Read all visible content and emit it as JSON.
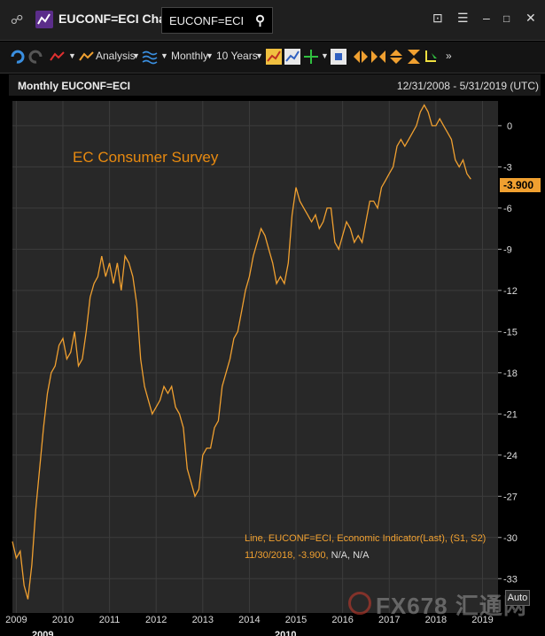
{
  "window": {
    "title": "EUCONF=ECI Chart",
    "search_value": "EUCONF=ECI"
  },
  "toolbar": {
    "analysis_label": "Analysis",
    "interval_label": "Monthly",
    "range_label": "10 Years"
  },
  "chart_header": {
    "left": "Monthly EUCONF=ECI",
    "right": "12/31/2008 - 5/31/2019 (UTC)"
  },
  "auto_label": "Auto",
  "watermark": "FX678 汇通网",
  "chart_data": {
    "type": "line",
    "title": "EC Consumer Survey",
    "line_color": "#f0a030",
    "x_start": "2008-12",
    "series": [
      {
        "values": [
          -30.3,
          -31.5,
          -31.0,
          -33.5,
          -34.5,
          -32.0,
          -28.0,
          -25.0,
          -22.0,
          -19.5,
          -18.0,
          -17.5,
          -16.0,
          -15.5,
          -17.0,
          -16.5,
          -15.0,
          -17.5,
          -17.0,
          -15.0,
          -12.5,
          -11.5,
          -11.0,
          -9.5,
          -11.0,
          -10.0,
          -11.5,
          -10.0,
          -12.0,
          -9.5,
          -10.0,
          -11.0,
          -13.0,
          -17.0,
          -19.0,
          -20.0,
          -21.0,
          -20.5,
          -20.0,
          -19.0,
          -19.5,
          -19.0,
          -20.5,
          -21.0,
          -22.0,
          -25.0,
          -26.0,
          -27.0,
          -26.5,
          -24.0,
          -23.5,
          -23.5,
          -22.0,
          -21.5,
          -19.0,
          -18.0,
          -17.0,
          -15.5,
          -15.0,
          -13.5,
          -12.0,
          -11.0,
          -9.5,
          -8.5,
          -7.5,
          -8.0,
          -9.0,
          -10.0,
          -11.5,
          -11.0,
          -11.5,
          -10.0,
          -6.5,
          -4.5,
          -5.5,
          -6.0,
          -6.5,
          -7.0,
          -6.5,
          -7.5,
          -7.0,
          -6.0,
          -6.0,
          -8.5,
          -9.0,
          -8.0,
          -7.0,
          -7.5,
          -8.5,
          -8.0,
          -8.5,
          -7.0,
          -5.5,
          -5.5,
          -6.0,
          -4.5,
          -4.0,
          -3.5,
          -3.0,
          -1.5,
          -1.0,
          -1.5,
          -1.0,
          -0.5,
          0.0,
          1.0,
          1.5,
          1.0,
          0.0,
          0.0,
          0.5,
          0.0,
          -0.5,
          -1.0,
          -2.5,
          -3.0,
          -2.5,
          -3.5,
          -3.9
        ]
      }
    ],
    "x_tick_labels": [
      "2009",
      "2010",
      "2011",
      "2012",
      "2013",
      "2014",
      "2015",
      "2016",
      "2017",
      "2018",
      "2019"
    ],
    "x_tick_years": [
      2009,
      2010,
      2011,
      2012,
      2013,
      2014,
      2015,
      2016,
      2017,
      2018,
      2019
    ],
    "y_ticks": [
      0,
      -3,
      -6,
      -9,
      -12,
      -15,
      -18,
      -21,
      -24,
      -27,
      -30,
      -33
    ],
    "ylim": [
      -35.5,
      1.8
    ],
    "grid": true,
    "last_value_label": "-3.900",
    "legend_line1": "Line, EUCONF=ECI, Economic Indicator(Last), (S1, S2)",
    "legend_line2_date": "11/30/2018, -3.900,",
    "legend_line2_rest": " N/A, N/A",
    "bottom_labels": [
      "2009",
      "2010"
    ]
  }
}
